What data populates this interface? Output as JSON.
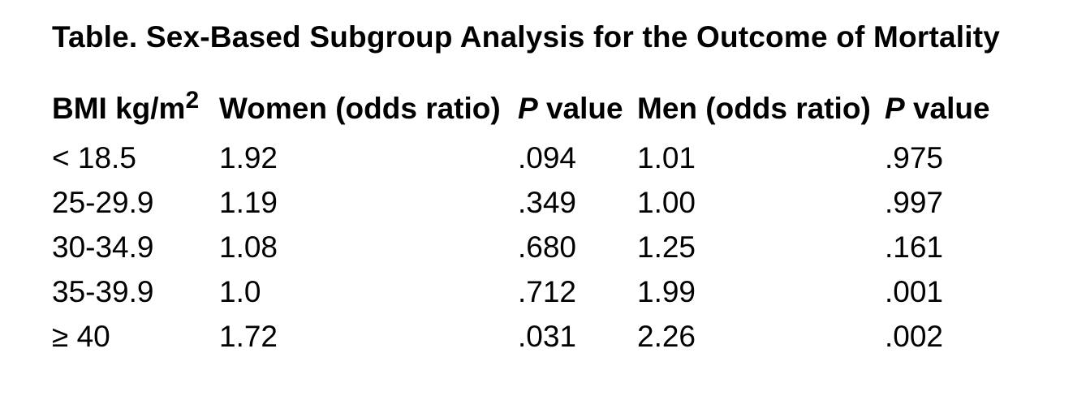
{
  "title": "Table. Sex-Based Subgroup Analysis for the Outcome of Mortality",
  "table": {
    "columns": [
      {
        "label_base": "BMI kg/m",
        "label_sup": "2"
      },
      {
        "label": "Women (odds ratio)"
      },
      {
        "label_italic": "P",
        "label_rest": " value"
      },
      {
        "label": "Men (odds ratio)"
      },
      {
        "label_italic": "P",
        "label_rest": " value"
      }
    ],
    "rows": [
      {
        "bmi": "< 18.5",
        "women_or": "1.92",
        "women_p": ".094",
        "men_or": "1.01",
        "men_p": ".975"
      },
      {
        "bmi": "25-29.9",
        "women_or": "1.19",
        "women_p": ".349",
        "men_or": "1.00",
        "men_p": ".997"
      },
      {
        "bmi": "30-34.9",
        "women_or": "1.08",
        "women_p": ".680",
        "men_or": "1.25",
        "men_p": ".161"
      },
      {
        "bmi": "35-39.9",
        "women_or": "1.0",
        "women_p": ".712",
        "men_or": "1.99",
        "men_p": ".001"
      },
      {
        "bmi": "≥ 40",
        "women_or": "1.72",
        "women_p": ".031",
        "men_or": "2.26",
        "men_p": ".002"
      }
    ]
  },
  "colors": {
    "text": "#000000",
    "background": "#ffffff"
  }
}
